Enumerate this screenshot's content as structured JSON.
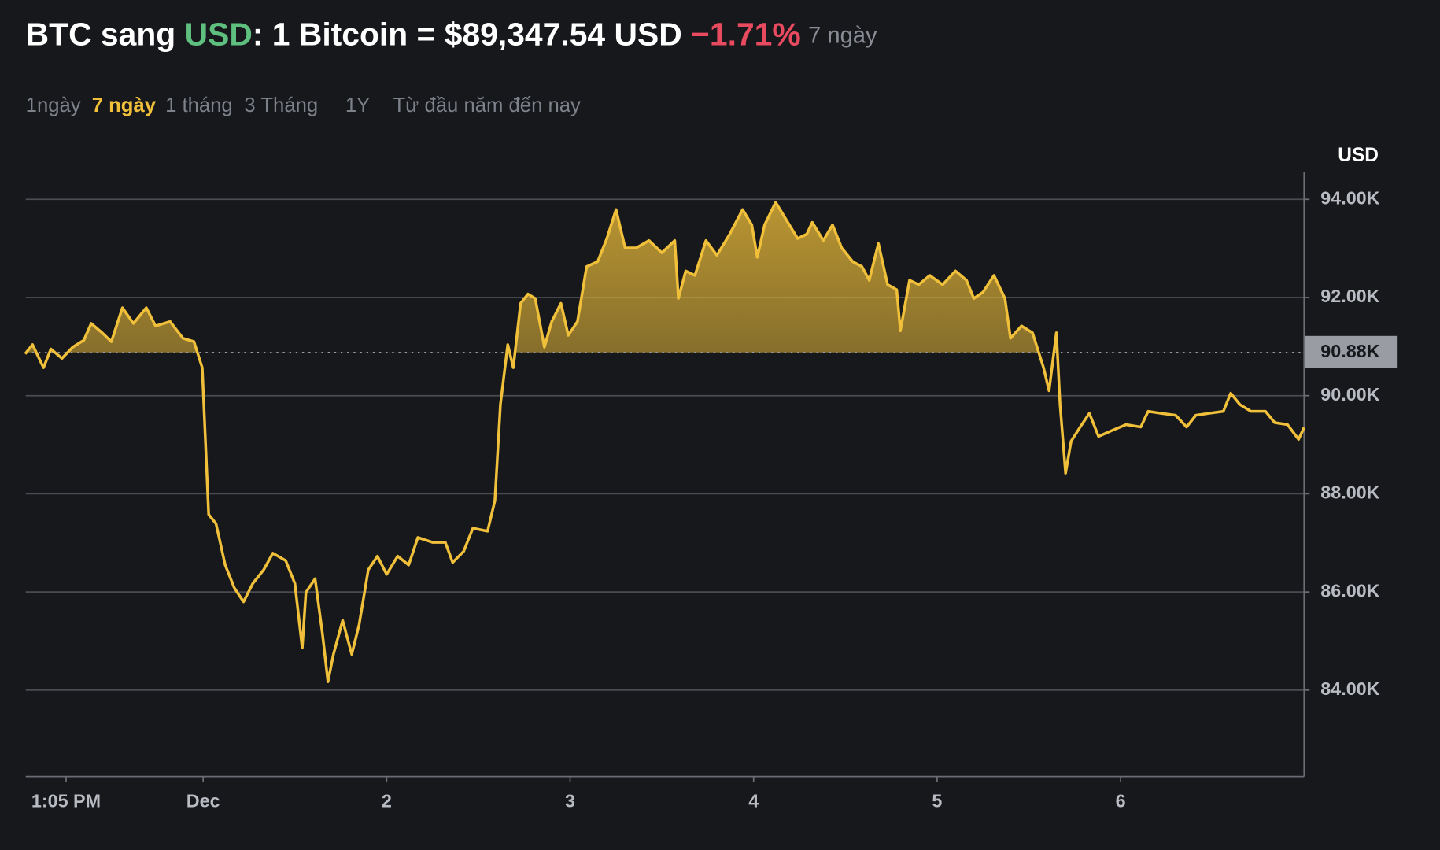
{
  "header": {
    "title_parts": [
      {
        "text": "BTC sang ",
        "color": "#ffffff"
      },
      {
        "text": "USD",
        "color": "#5fbf7e"
      },
      {
        "text": ": 1 Bitcoin = $89,347.54 USD ",
        "color": "#ffffff"
      },
      {
        "text": "−1.71%",
        "color": "#e84a5f"
      }
    ],
    "period": "7 ngày"
  },
  "tabs": [
    {
      "label": "1ngày"
    },
    {
      "label": "7 ngày",
      "active": true
    },
    {
      "label": "1 tháng"
    },
    {
      "label": "3 Tháng"
    },
    {
      "label": "1Y"
    },
    {
      "label": "Từ đầu năm đến nay"
    }
  ],
  "chart_data": {
    "type": "line",
    "y_unit": "USD",
    "color": "#f0c03a",
    "grid": true,
    "x": [
      -0.97,
      -0.93,
      -0.87,
      -0.83,
      -0.77,
      -0.71,
      -0.65,
      -0.61,
      -0.55,
      -0.5,
      -0.44,
      -0.38,
      -0.31,
      -0.26,
      -0.18,
      -0.11,
      -0.05,
      -0.005,
      0.03,
      0.07,
      0.12,
      0.17,
      0.22,
      0.27,
      0.33,
      0.38,
      0.45,
      0.5,
      0.54,
      0.56,
      0.61,
      0.65,
      0.68,
      0.71,
      0.76,
      0.81,
      0.85,
      0.9,
      0.95,
      1.0,
      1.06,
      1.12,
      1.17,
      1.25,
      1.32,
      1.36,
      1.42,
      1.47,
      1.55,
      1.59,
      1.62,
      1.66,
      1.69,
      1.73,
      1.77,
      1.81,
      1.86,
      1.9,
      1.95,
      1.99,
      2.04,
      2.09,
      2.15,
      2.2,
      2.25,
      2.3,
      2.36,
      2.43,
      2.5,
      2.57,
      2.59,
      2.63,
      2.68,
      2.74,
      2.8,
      2.87,
      2.94,
      2.99,
      3.02,
      3.06,
      3.12,
      3.18,
      3.24,
      3.29,
      3.32,
      3.38,
      3.43,
      3.48,
      3.54,
      3.59,
      3.63,
      3.68,
      3.73,
      3.78,
      3.8,
      3.85,
      3.9,
      3.96,
      4.03,
      4.1,
      4.16,
      4.2,
      4.25,
      4.31,
      4.37,
      4.4,
      4.46,
      4.52,
      4.58,
      4.61,
      4.65,
      4.67,
      4.7,
      4.73,
      4.78,
      4.83,
      4.88,
      4.96,
      5.03,
      5.11,
      5.15,
      5.22,
      5.3,
      5.36,
      5.41,
      5.48,
      5.56,
      5.6,
      5.65,
      5.71,
      5.79,
      5.84,
      5.91,
      5.97,
      6.0
    ],
    "values": [
      90850,
      91040,
      90570,
      90950,
      90760,
      90990,
      91130,
      91470,
      91280,
      91100,
      91790,
      91470,
      91790,
      91420,
      91510,
      91170,
      91100,
      90570,
      87580,
      87390,
      86550,
      86080,
      85800,
      86170,
      86450,
      86790,
      86640,
      86170,
      84860,
      85990,
      86270,
      85150,
      84170,
      84730,
      85420,
      84730,
      85330,
      86450,
      86730,
      86360,
      86730,
      86550,
      87110,
      87010,
      87010,
      86600,
      86830,
      87300,
      87240,
      87860,
      89820,
      91040,
      90570,
      91880,
      92070,
      91980,
      90990,
      91510,
      91880,
      91230,
      91510,
      92630,
      92730,
      93200,
      93790,
      93010,
      93010,
      93160,
      92910,
      93160,
      91980,
      92540,
      92450,
      93160,
      92860,
      93290,
      93790,
      93480,
      92820,
      93480,
      93940,
      93570,
      93200,
      93290,
      93530,
      93160,
      93480,
      93010,
      92730,
      92630,
      92350,
      93100,
      92260,
      92160,
      91320,
      92350,
      92260,
      92450,
      92260,
      92540,
      92350,
      91980,
      92110,
      92450,
      91980,
      91170,
      91420,
      91280,
      90570,
      90100,
      91280,
      89820,
      88420,
      89070,
      89360,
      89640,
      89170,
      89300,
      89410,
      89360,
      89680,
      89640,
      89600,
      89360,
      89600,
      89640,
      89680,
      90050,
      89820,
      89680,
      89680,
      89450,
      89410,
      89110,
      89350
    ],
    "xlim": [
      -0.967,
      6.0
    ],
    "xticks": [
      {
        "value": -0.747,
        "label": "1:05 PM"
      },
      {
        "value": 0,
        "label": "Dec"
      },
      {
        "value": 1,
        "label": "2"
      },
      {
        "value": 2,
        "label": "3"
      },
      {
        "value": 3,
        "label": "4"
      },
      {
        "value": 4,
        "label": "5"
      },
      {
        "value": 5,
        "label": "6"
      }
    ],
    "ylim": [
      82240,
      94560
    ],
    "yticks": [
      {
        "value": 84000,
        "label": "84.00K"
      },
      {
        "value": 86000,
        "label": "86.00K"
      },
      {
        "value": 88000,
        "label": "88.00K"
      },
      {
        "value": 90000,
        "label": "90.00K"
      },
      {
        "value": 92000,
        "label": "92.00K"
      },
      {
        "value": 94000,
        "label": "94.00K"
      }
    ],
    "reference": {
      "value": 90880,
      "label": "90.88K"
    }
  }
}
